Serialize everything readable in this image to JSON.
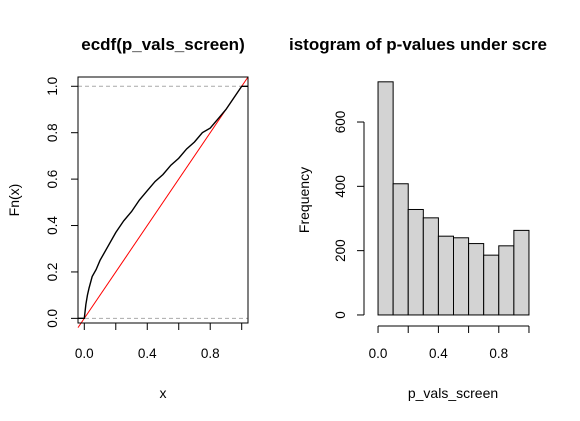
{
  "chart_data": [
    {
      "type": "line",
      "title": "ecdf(p_vals_screen)",
      "xlabel": "x",
      "ylabel": "Fn(x)",
      "xlim": [
        -0.04,
        1.04
      ],
      "ylim": [
        -0.02,
        1.04
      ],
      "x_ticks": [
        0.0,
        0.4,
        0.8
      ],
      "x_tick_labels": [
        "0.0",
        "0.4",
        "0.8"
      ],
      "y_ticks": [
        0.0,
        0.2,
        0.4,
        0.6,
        0.8,
        1.0
      ],
      "y_tick_labels": [
        "0.0",
        "0.2",
        "0.4",
        "0.6",
        "0.8",
        "1.0"
      ],
      "reference_lines_y": [
        0,
        1
      ],
      "diagonal_ref": {
        "from": [
          0,
          0
        ],
        "to": [
          1,
          1
        ],
        "color": "#ff0000"
      },
      "series": [
        {
          "x": [
            0.0,
            0.005,
            0.01,
            0.02,
            0.03,
            0.05,
            0.075,
            0.1,
            0.15,
            0.2,
            0.25,
            0.3,
            0.35,
            0.4,
            0.45,
            0.5,
            0.55,
            0.6,
            0.65,
            0.7,
            0.75,
            0.8,
            0.85,
            0.9,
            0.95,
            1.0
          ],
          "y": [
            0.0,
            0.03,
            0.06,
            0.1,
            0.13,
            0.18,
            0.21,
            0.25,
            0.31,
            0.37,
            0.42,
            0.46,
            0.51,
            0.55,
            0.59,
            0.62,
            0.66,
            0.69,
            0.73,
            0.76,
            0.8,
            0.82,
            0.86,
            0.9,
            0.95,
            1.0
          ]
        }
      ]
    },
    {
      "type": "bar",
      "title": "istogram of p-values under scre",
      "xlabel": "p_vals_screen",
      "ylabel": "Frequency",
      "xlim": [
        -0.04,
        1.04
      ],
      "ylim": [
        -25,
        740
      ],
      "x_ticks": [
        0.0,
        0.2,
        0.4,
        0.6,
        0.8,
        1.0
      ],
      "x_tick_labels": [
        "0.0",
        "",
        "0.4",
        "",
        "0.8",
        ""
      ],
      "y_ticks": [
        0,
        200,
        400,
        600
      ],
      "y_tick_labels": [
        "0",
        "200",
        "400",
        "600"
      ],
      "bin_edges": [
        0.0,
        0.1,
        0.2,
        0.3,
        0.4,
        0.5,
        0.6,
        0.7,
        0.8,
        0.9,
        1.0
      ],
      "values": [
        725,
        408,
        328,
        302,
        245,
        240,
        222,
        186,
        215,
        263
      ],
      "bar_color": "#d3d3d3"
    }
  ]
}
